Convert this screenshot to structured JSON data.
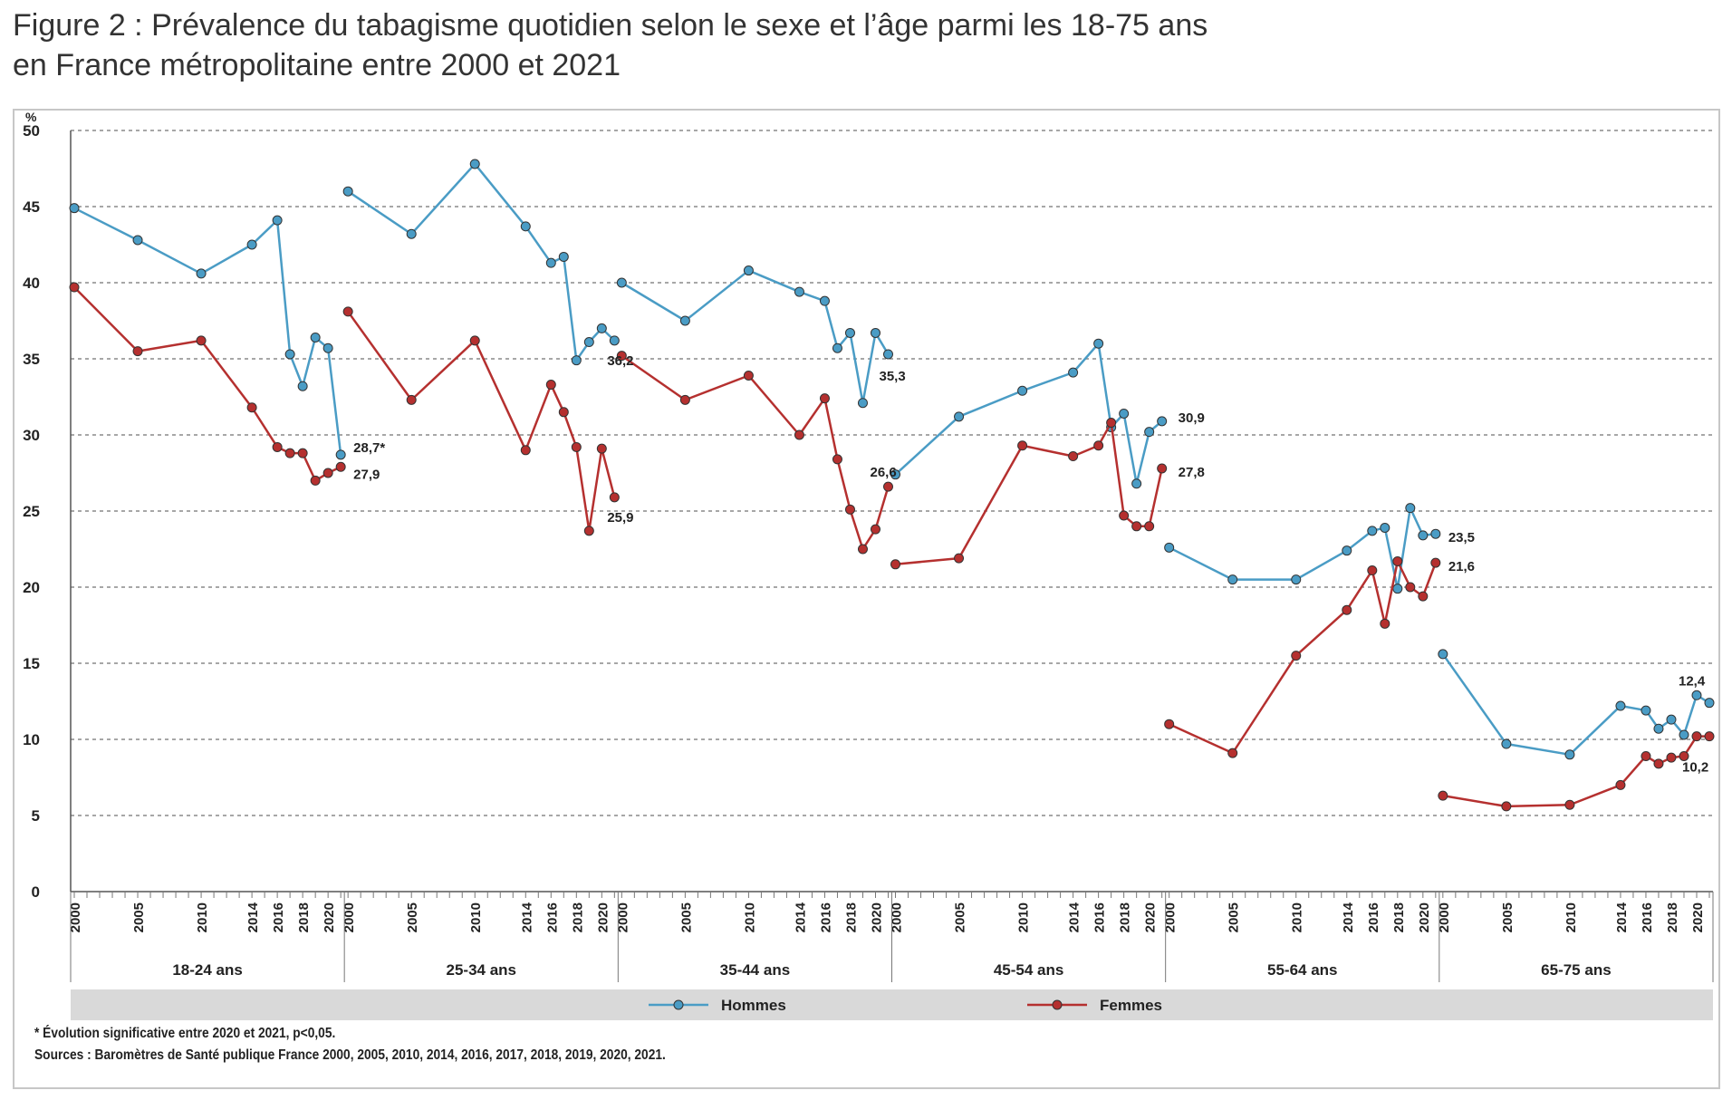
{
  "figure": {
    "title_line1": "Figure 2 : Prévalence du tabagisme quotidien selon le sexe et l’âge parmi les 18-75 ans",
    "title_line2": "en France métropolitaine entre 2000 et 2021"
  },
  "footnotes": {
    "note": "* Évolution significative entre 2020 et 2021, p<0,05.",
    "sources": "Sources : Baromètres de Santé publique France 2000, 2005, 2010, 2014, 2016, 2017, 2018, 2019, 2020, 2021."
  },
  "chart_data": {
    "type": "line",
    "ylabel": "%",
    "ylim": [
      0,
      50
    ],
    "yticks": [
      0,
      5,
      10,
      15,
      20,
      25,
      30,
      35,
      40,
      45,
      50
    ],
    "grid": "horizontal dashed",
    "legend_position": "bottom",
    "years": [
      2000,
      2005,
      2010,
      2014,
      2016,
      2017,
      2018,
      2019,
      2020,
      2021
    ],
    "tick_labels": [
      "2000",
      "2005",
      "2010",
      "2014",
      "2016",
      "2018",
      "2020"
    ],
    "tick_label_years": [
      2000,
      2005,
      2010,
      2014,
      2016,
      2018,
      2020
    ],
    "groups": [
      "18-24 ans",
      "25-34 ans",
      "35-44 ans",
      "45-54 ans",
      "55-64 ans",
      "65-75 ans"
    ],
    "series": [
      {
        "name": "Hommes",
        "color": "#4a9cc5",
        "values": [
          [
            44.9,
            42.8,
            40.6,
            42.5,
            44.1,
            35.3,
            33.2,
            36.4,
            35.7,
            28.7
          ],
          [
            46.0,
            43.2,
            47.8,
            43.7,
            41.3,
            41.7,
            34.9,
            36.1,
            37.0,
            36.2
          ],
          [
            40.0,
            37.5,
            40.8,
            39.4,
            38.8,
            35.7,
            36.7,
            32.1,
            36.7,
            35.3
          ],
          [
            27.4,
            31.2,
            32.9,
            34.1,
            36.0,
            30.5,
            31.4,
            26.8,
            30.2,
            30.9
          ],
          [
            22.6,
            20.5,
            20.5,
            22.4,
            23.7,
            23.9,
            19.9,
            25.2,
            23.4,
            23.5
          ],
          [
            15.6,
            9.7,
            9.0,
            12.2,
            11.9,
            10.7,
            11.3,
            10.3,
            12.9,
            12.4
          ]
        ]
      },
      {
        "name": "Femmes",
        "color": "#b5302f",
        "values": [
          [
            39.7,
            35.5,
            36.2,
            31.8,
            29.2,
            28.8,
            28.8,
            27.0,
            27.5,
            27.9
          ],
          [
            38.1,
            32.3,
            36.2,
            29.0,
            33.3,
            31.5,
            29.2,
            23.7,
            29.1,
            25.9
          ],
          [
            35.2,
            32.3,
            33.9,
            30.0,
            32.4,
            28.4,
            25.1,
            22.5,
            23.8,
            26.6
          ],
          [
            21.5,
            21.9,
            29.3,
            28.6,
            29.3,
            30.8,
            24.7,
            24.0,
            24.0,
            27.8
          ],
          [
            11.0,
            9.1,
            15.5,
            18.5,
            21.1,
            17.6,
            21.7,
            20.0,
            19.4,
            21.6
          ],
          [
            6.3,
            5.6,
            5.7,
            7.0,
            8.9,
            8.4,
            8.8,
            8.9,
            10.2,
            10.2
          ]
        ]
      }
    ],
    "annotations": [
      {
        "group": 0,
        "text": "28,7*",
        "value": 28.7
      },
      {
        "group": 0,
        "text": "27,9",
        "value": 27.9
      },
      {
        "group": 1,
        "text": "36,2",
        "value": 36.2
      },
      {
        "group": 1,
        "text": "25,9",
        "value": 25.9
      },
      {
        "group": 2,
        "text": "35,3",
        "value": 35.3
      },
      {
        "group": 2,
        "text": "26,6",
        "value": 26.6
      },
      {
        "group": 3,
        "text": "30,9",
        "value": 30.9
      },
      {
        "group": 3,
        "text": "27,8",
        "value": 27.8
      },
      {
        "group": 4,
        "text": "23,5",
        "value": 23.5
      },
      {
        "group": 4,
        "text": "21,6",
        "value": 21.6
      },
      {
        "group": 5,
        "text": "12,4",
        "value": 12.4
      },
      {
        "group": 5,
        "text": "10,2",
        "value": 10.2
      }
    ]
  }
}
